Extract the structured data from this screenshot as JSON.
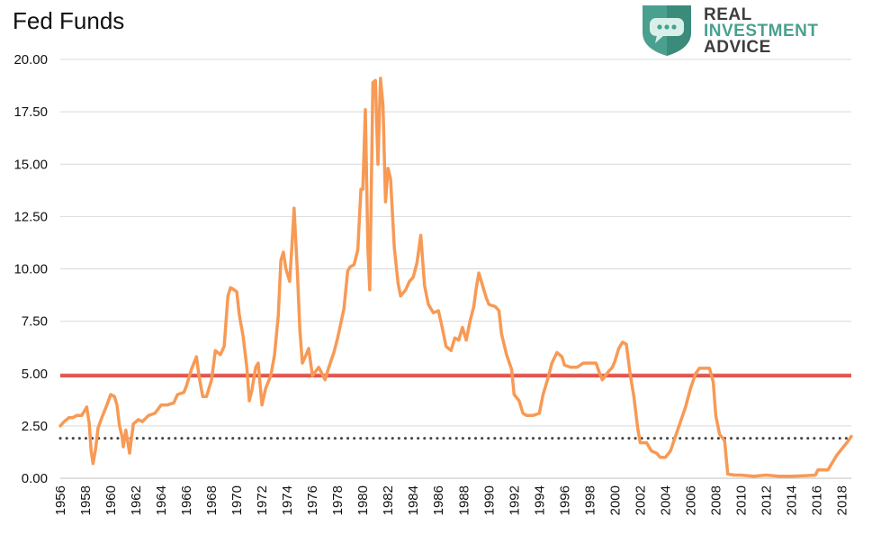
{
  "title": "Fed Funds",
  "logo": {
    "line1": "REAL",
    "line2": "INVESTMENT",
    "line3": "ADVICE",
    "colors": [
      "#3d3d3d",
      "#4aa08f"
    ]
  },
  "chart_data": {
    "type": "line",
    "title": "Fed Funds",
    "xlabel": "",
    "ylabel": "",
    "xlim": [
      1956,
      2018.75
    ],
    "ylim": [
      0,
      20
    ],
    "grid": true,
    "yticks": [
      "0.00",
      "2.50",
      "5.00",
      "7.50",
      "10.00",
      "12.50",
      "15.00",
      "17.50",
      "20.00"
    ],
    "xticks": [
      "1956",
      "1958",
      "1960",
      "1962",
      "1964",
      "1966",
      "1968",
      "1970",
      "1972",
      "1974",
      "1976",
      "1978",
      "1980",
      "1982",
      "1984",
      "1986",
      "1988",
      "1990",
      "1992",
      "1994",
      "1996",
      "1998",
      "2000",
      "2002",
      "2004",
      "2006",
      "2008",
      "2010",
      "2012",
      "2014",
      "2016",
      "2018"
    ],
    "reference_lines": [
      {
        "value": 4.9,
        "style": "solid",
        "color": "#e0574f"
      },
      {
        "value": 1.91,
        "style": "dotted",
        "color": "#444444"
      }
    ],
    "series": [
      {
        "color": "#f79a55",
        "points": [
          [
            1956.0,
            2.5
          ],
          [
            1956.3,
            2.7
          ],
          [
            1956.7,
            2.9
          ],
          [
            1957.0,
            2.9
          ],
          [
            1957.3,
            3.0
          ],
          [
            1957.7,
            3.0
          ],
          [
            1957.9,
            3.2
          ],
          [
            1958.1,
            3.4
          ],
          [
            1958.3,
            2.6
          ],
          [
            1958.45,
            1.3
          ],
          [
            1958.6,
            0.7
          ],
          [
            1958.8,
            1.4
          ],
          [
            1959.0,
            2.4
          ],
          [
            1959.3,
            2.9
          ],
          [
            1959.7,
            3.5
          ],
          [
            1960.0,
            4.0
          ],
          [
            1960.3,
            3.9
          ],
          [
            1960.5,
            3.5
          ],
          [
            1960.7,
            2.5
          ],
          [
            1960.9,
            2.0
          ],
          [
            1961.0,
            1.5
          ],
          [
            1961.2,
            2.3
          ],
          [
            1961.5,
            1.2
          ],
          [
            1961.8,
            2.6
          ],
          [
            1962.2,
            2.8
          ],
          [
            1962.5,
            2.7
          ],
          [
            1963.0,
            3.0
          ],
          [
            1963.5,
            3.1
          ],
          [
            1964.0,
            3.5
          ],
          [
            1964.5,
            3.5
          ],
          [
            1965.0,
            3.6
          ],
          [
            1965.3,
            4.0
          ],
          [
            1965.8,
            4.1
          ],
          [
            1966.0,
            4.4
          ],
          [
            1966.4,
            5.2
          ],
          [
            1966.8,
            5.8
          ],
          [
            1967.0,
            4.9
          ],
          [
            1967.3,
            3.9
          ],
          [
            1967.6,
            3.9
          ],
          [
            1968.0,
            4.7
          ],
          [
            1968.3,
            6.1
          ],
          [
            1968.7,
            5.9
          ],
          [
            1969.0,
            6.3
          ],
          [
            1969.3,
            8.7
          ],
          [
            1969.5,
            9.1
          ],
          [
            1969.8,
            9.0
          ],
          [
            1970.0,
            8.9
          ],
          [
            1970.2,
            7.8
          ],
          [
            1970.5,
            6.8
          ],
          [
            1970.8,
            5.3
          ],
          [
            1971.0,
            3.7
          ],
          [
            1971.2,
            4.2
          ],
          [
            1971.5,
            5.3
          ],
          [
            1971.7,
            5.5
          ],
          [
            1972.0,
            3.5
          ],
          [
            1972.3,
            4.3
          ],
          [
            1972.7,
            4.9
          ],
          [
            1973.0,
            5.9
          ],
          [
            1973.3,
            7.8
          ],
          [
            1973.5,
            10.4
          ],
          [
            1973.7,
            10.8
          ],
          [
            1973.9,
            10.0
          ],
          [
            1974.2,
            9.4
          ],
          [
            1974.4,
            11.3
          ],
          [
            1974.55,
            12.9
          ],
          [
            1974.8,
            10.0
          ],
          [
            1975.0,
            7.1
          ],
          [
            1975.2,
            5.5
          ],
          [
            1975.5,
            5.9
          ],
          [
            1975.7,
            6.2
          ],
          [
            1976.0,
            4.9
          ],
          [
            1976.5,
            5.3
          ],
          [
            1977.0,
            4.7
          ],
          [
            1977.3,
            5.3
          ],
          [
            1977.7,
            6.0
          ],
          [
            1978.0,
            6.7
          ],
          [
            1978.5,
            8.1
          ],
          [
            1978.8,
            9.9
          ],
          [
            1979.0,
            10.1
          ],
          [
            1979.3,
            10.2
          ],
          [
            1979.6,
            10.9
          ],
          [
            1979.85,
            13.8
          ],
          [
            1980.0,
            13.8
          ],
          [
            1980.2,
            17.6
          ],
          [
            1980.4,
            11.0
          ],
          [
            1980.55,
            9.0
          ],
          [
            1980.8,
            18.9
          ],
          [
            1981.0,
            19.0
          ],
          [
            1981.2,
            15.0
          ],
          [
            1981.4,
            19.1
          ],
          [
            1981.6,
            17.8
          ],
          [
            1981.8,
            13.2
          ],
          [
            1982.0,
            14.8
          ],
          [
            1982.2,
            14.3
          ],
          [
            1982.5,
            11.0
          ],
          [
            1982.8,
            9.3
          ],
          [
            1983.0,
            8.7
          ],
          [
            1983.4,
            9.0
          ],
          [
            1983.7,
            9.4
          ],
          [
            1984.0,
            9.6
          ],
          [
            1984.3,
            10.3
          ],
          [
            1984.6,
            11.6
          ],
          [
            1984.9,
            9.2
          ],
          [
            1985.2,
            8.3
          ],
          [
            1985.6,
            7.9
          ],
          [
            1986.0,
            8.0
          ],
          [
            1986.3,
            7.2
          ],
          [
            1986.6,
            6.3
          ],
          [
            1987.0,
            6.1
          ],
          [
            1987.3,
            6.7
          ],
          [
            1987.6,
            6.6
          ],
          [
            1987.9,
            7.2
          ],
          [
            1988.2,
            6.6
          ],
          [
            1988.5,
            7.5
          ],
          [
            1988.8,
            8.2
          ],
          [
            1989.0,
            9.1
          ],
          [
            1989.2,
            9.8
          ],
          [
            1989.5,
            9.2
          ],
          [
            1989.8,
            8.6
          ],
          [
            1990.0,
            8.3
          ],
          [
            1990.5,
            8.2
          ],
          [
            1990.8,
            8.0
          ],
          [
            1991.0,
            6.9
          ],
          [
            1991.4,
            5.9
          ],
          [
            1991.8,
            5.2
          ],
          [
            1992.0,
            4.0
          ],
          [
            1992.4,
            3.7
          ],
          [
            1992.7,
            3.1
          ],
          [
            1993.0,
            3.0
          ],
          [
            1993.5,
            3.0
          ],
          [
            1994.0,
            3.1
          ],
          [
            1994.3,
            4.0
          ],
          [
            1994.7,
            4.8
          ],
          [
            1995.0,
            5.5
          ],
          [
            1995.4,
            6.0
          ],
          [
            1995.8,
            5.8
          ],
          [
            1996.0,
            5.4
          ],
          [
            1996.5,
            5.3
          ],
          [
            1997.0,
            5.3
          ],
          [
            1997.5,
            5.5
          ],
          [
            1998.0,
            5.5
          ],
          [
            1998.5,
            5.5
          ],
          [
            1998.8,
            5.0
          ],
          [
            1999.0,
            4.7
          ],
          [
            1999.5,
            5.1
          ],
          [
            1999.8,
            5.3
          ],
          [
            2000.0,
            5.6
          ],
          [
            2000.3,
            6.2
          ],
          [
            2000.6,
            6.5
          ],
          [
            2000.9,
            6.4
          ],
          [
            2001.2,
            5.0
          ],
          [
            2001.5,
            3.9
          ],
          [
            2001.8,
            2.4
          ],
          [
            2002.0,
            1.7
          ],
          [
            2002.5,
            1.7
          ],
          [
            2002.9,
            1.3
          ],
          [
            2003.3,
            1.2
          ],
          [
            2003.6,
            1.0
          ],
          [
            2004.0,
            1.0
          ],
          [
            2004.4,
            1.3
          ],
          [
            2004.8,
            2.0
          ],
          [
            2005.2,
            2.7
          ],
          [
            2005.6,
            3.4
          ],
          [
            2006.0,
            4.3
          ],
          [
            2006.4,
            5.0
          ],
          [
            2006.7,
            5.25
          ],
          [
            2007.0,
            5.25
          ],
          [
            2007.5,
            5.25
          ],
          [
            2007.8,
            4.6
          ],
          [
            2008.0,
            3.0
          ],
          [
            2008.3,
            2.1
          ],
          [
            2008.7,
            1.8
          ],
          [
            2008.95,
            0.2
          ],
          [
            2009.5,
            0.15
          ],
          [
            2010.0,
            0.15
          ],
          [
            2011.0,
            0.1
          ],
          [
            2012.0,
            0.15
          ],
          [
            2013.0,
            0.1
          ],
          [
            2014.0,
            0.1
          ],
          [
            2015.0,
            0.12
          ],
          [
            2015.9,
            0.15
          ],
          [
            2016.1,
            0.4
          ],
          [
            2016.9,
            0.4
          ],
          [
            2017.2,
            0.7
          ],
          [
            2017.6,
            1.1
          ],
          [
            2018.0,
            1.4
          ],
          [
            2018.4,
            1.7
          ],
          [
            2018.75,
            2.0
          ]
        ]
      }
    ]
  }
}
